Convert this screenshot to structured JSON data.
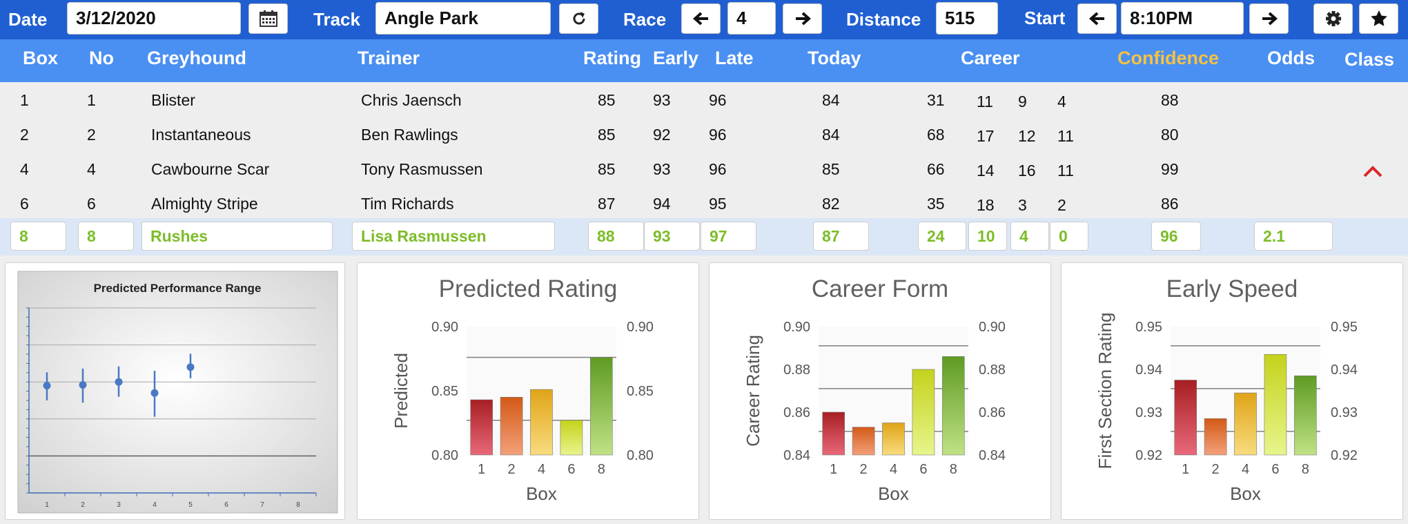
{
  "toolbar": {
    "date_label": "Date",
    "date_value": "3/12/2020",
    "track_label": "Track",
    "track_value": "Angle Park",
    "race_label": "Race",
    "race_value": "4",
    "distance_label": "Distance",
    "distance_value": "515",
    "start_label": "Start",
    "start_value": "8:10PM"
  },
  "columns": {
    "box": "Box",
    "no": "No",
    "greyhound": "Greyhound",
    "trainer": "Trainer",
    "rating": "Rating",
    "early": "Early",
    "late": "Late",
    "today": "Today",
    "career": "Career",
    "confidence": "Confidence",
    "odds": "Odds",
    "class": "Class"
  },
  "runners": [
    {
      "box": "1",
      "no": "1",
      "name": "Blister",
      "trainer": "Chris Jaensch",
      "rating": "85",
      "early": "93",
      "late": "96",
      "today": "84",
      "c1": "31",
      "c2": "11",
      "c3": "9",
      "c4": "4",
      "confidence": "88",
      "odds": ""
    },
    {
      "box": "2",
      "no": "2",
      "name": "Instantaneous",
      "trainer": "Ben Rawlings",
      "rating": "85",
      "early": "92",
      "late": "96",
      "today": "84",
      "c1": "68",
      "c2": "17",
      "c3": "12",
      "c4": "11",
      "confidence": "80",
      "odds": ""
    },
    {
      "box": "4",
      "no": "4",
      "name": "Cawbourne Scar",
      "trainer": "Tony Rasmussen",
      "rating": "85",
      "early": "93",
      "late": "96",
      "today": "85",
      "c1": "66",
      "c2": "14",
      "c3": "16",
      "c4": "11",
      "confidence": "99",
      "odds": ""
    },
    {
      "box": "6",
      "no": "6",
      "name": "Almighty Stripe",
      "trainer": "Tim Richards",
      "rating": "87",
      "early": "94",
      "late": "95",
      "today": "82",
      "c1": "35",
      "c2": "18",
      "c3": "3",
      "c4": "2",
      "confidence": "86",
      "odds": ""
    }
  ],
  "selected": {
    "box": "8",
    "no": "8",
    "name": "Rushes",
    "trainer": "Lisa Rasmussen",
    "rating": "88",
    "early": "93",
    "late": "97",
    "today": "87",
    "c1": "24",
    "c2": "10",
    "c3": "4",
    "c4": "0",
    "confidence": "96",
    "odds": "2.1"
  },
  "colors": {
    "toolbar": "#1f5fd1",
    "header": "#4a8ff2",
    "confidence_header": "#f5c242",
    "selected_text": "#7cbd27",
    "selected_row": "#dbe7f7",
    "class_arrow": "#d9262b"
  },
  "icons": {
    "calendar": "calendar-icon",
    "refresh": "refresh-icon",
    "prev": "arrow-left-icon",
    "next": "arrow-right-icon",
    "settings": "gear-icon",
    "favorite": "star-icon",
    "class": "chevron-up-icon"
  },
  "chart_data": [
    {
      "type": "scatter",
      "title": "Predicted Performance Range",
      "x": [
        1,
        2,
        3,
        4,
        5
      ],
      "y": [
        0.845,
        0.846,
        0.85,
        0.835,
        0.87
      ],
      "error_low": [
        0.825,
        0.822,
        0.83,
        0.803,
        0.855
      ],
      "error_high": [
        0.863,
        0.868,
        0.871,
        0.865,
        0.888
      ],
      "xticks": [
        "1",
        "2",
        "3",
        "4",
        "5",
        "6",
        "7",
        "8"
      ],
      "ylim": [
        0.7,
        0.95
      ],
      "grid": true
    },
    {
      "type": "bar",
      "title": "Predicted Rating",
      "xlabel": "Box",
      "ylabel": "Predicted",
      "categories": [
        "1",
        "2",
        "4",
        "6",
        "8"
      ],
      "values": [
        0.843,
        0.845,
        0.851,
        0.827,
        0.876
      ],
      "ylim": [
        0.8,
        0.9
      ],
      "yticks": [
        "0.80",
        "0.85",
        "0.90"
      ],
      "secondary_yticks": [
        "0.80",
        "0.85",
        "0.90"
      ],
      "reference_lines": [
        0.876,
        0.827
      ]
    },
    {
      "type": "bar",
      "title": "Career Form",
      "xlabel": "Box",
      "ylabel": "Career Rating",
      "categories": [
        "1",
        "2",
        "4",
        "6",
        "8"
      ],
      "values": [
        0.86,
        0.853,
        0.855,
        0.88,
        0.886
      ],
      "ylim": [
        0.84,
        0.9
      ],
      "yticks": [
        "0.84",
        "0.86",
        "0.88",
        "0.90"
      ],
      "secondary_yticks": [
        "0.84",
        "0.86",
        "0.88",
        "0.90"
      ],
      "reference_lines": [
        0.891,
        0.871,
        0.851
      ]
    },
    {
      "type": "bar",
      "title": "Early Speed",
      "xlabel": "Box",
      "ylabel": "First Section Rating",
      "categories": [
        "1",
        "2",
        "4",
        "6",
        "8"
      ],
      "values": [
        0.9375,
        0.9285,
        0.9345,
        0.9435,
        0.9385
      ],
      "ylim": [
        0.92,
        0.95
      ],
      "yticks": [
        "0.92",
        "0.93",
        "0.94",
        "0.95"
      ],
      "secondary_yticks": [
        "0.92",
        "0.93",
        "0.94",
        "0.95"
      ],
      "reference_lines": [
        0.9455,
        0.9355,
        0.9255
      ]
    }
  ]
}
